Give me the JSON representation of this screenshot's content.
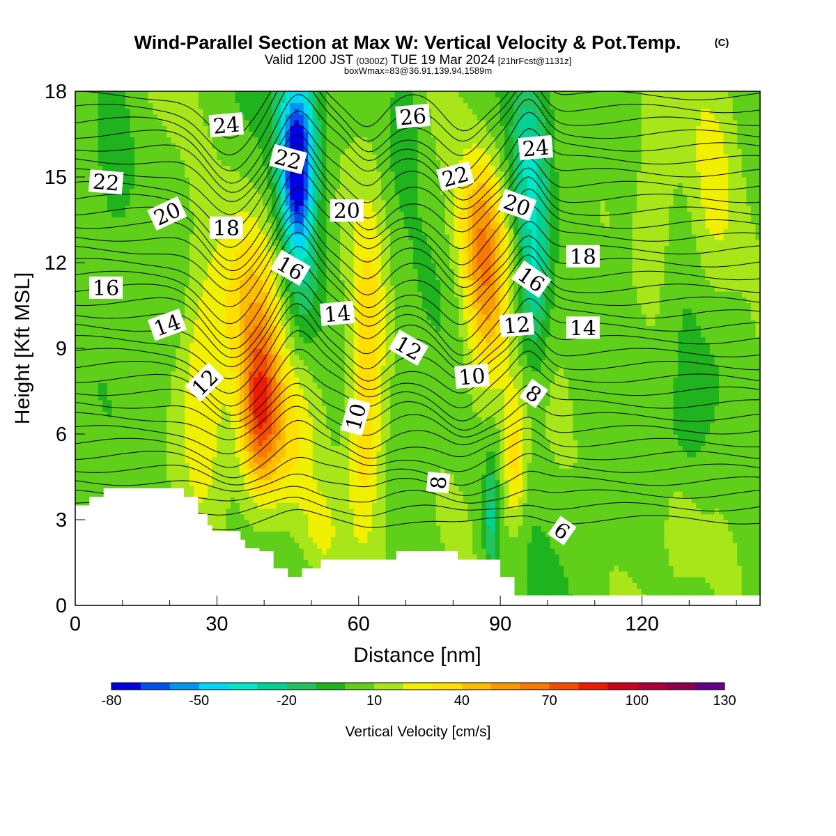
{
  "title": {
    "main": "Wind-Parallel Section at Max W: Vertical Velocity & Pot.Temp.",
    "copyright": "(C)",
    "valid_prefix": "Valid 1200 JST",
    "valid_utc": "(0300Z)",
    "valid_date": "TUE 19 Mar 2024",
    "forecast": "[21hrFcst@1131z]",
    "box": "boxWmax=83@36.91,139.94,1589m"
  },
  "colors": {
    "terrain": "#ffffff",
    "contour": "#000000",
    "background": "#ffffff"
  },
  "chart_data": {
    "type": "heatmap",
    "xlabel": "Distance [nm]",
    "ylabel": "Height [Kft MSL]",
    "xlim": [
      0,
      145
    ],
    "ylim": [
      0,
      18
    ],
    "xticks": [
      0,
      30,
      60,
      90,
      120
    ],
    "yticks": [
      0,
      3,
      6,
      9,
      12,
      15,
      18
    ],
    "colorbar": {
      "title": "Vertical Velocity [cm/s]",
      "tick_labels": [
        "-80",
        "-50",
        "-20",
        "10",
        "40",
        "70",
        "100",
        "130"
      ],
      "tick_values": [
        -80,
        -50,
        -20,
        10,
        40,
        70,
        100,
        130
      ],
      "levels": [
        -80,
        -70,
        -60,
        -50,
        -40,
        -30,
        -20,
        -10,
        0,
        10,
        20,
        30,
        40,
        50,
        60,
        70,
        80,
        90,
        100,
        110,
        120,
        130
      ],
      "colors": [
        "#0000e6",
        "#0050ef",
        "#0096f0",
        "#00d7f5",
        "#00e6c8",
        "#00d296",
        "#1fc45f",
        "#1fb31e",
        "#5fcf1a",
        "#a8e61a",
        "#f0f000",
        "#ffde00",
        "#fcbf00",
        "#fa9a00",
        "#f87800",
        "#f24c00",
        "#ee1b00",
        "#cd0019",
        "#b00038",
        "#8f004e",
        "#640087"
      ]
    },
    "w_features": [
      {
        "x": 39,
        "z": 6.8,
        "sx": 4.0,
        "sz": 2.8,
        "w": 62
      },
      {
        "x": 37,
        "z": 10.5,
        "sx": 6.0,
        "sz": 3.5,
        "w": 28
      },
      {
        "x": 27,
        "z": 8.0,
        "sx": 5.0,
        "sz": 4.5,
        "w": 25
      },
      {
        "x": 45,
        "z": 5.5,
        "sx": 6.0,
        "sz": 3.0,
        "w": 22
      },
      {
        "x": 62,
        "z": 9.5,
        "sx": 4.0,
        "sz": 5.0,
        "w": 30
      },
      {
        "x": 61,
        "z": 5.0,
        "sx": 3.5,
        "sz": 3.0,
        "w": 18
      },
      {
        "x": 87,
        "z": 11.0,
        "sx": 4.5,
        "sz": 3.5,
        "w": 42
      },
      {
        "x": 85,
        "z": 13.5,
        "sx": 5.0,
        "sz": 2.5,
        "w": 25
      },
      {
        "x": 93,
        "z": 5.0,
        "sx": 2.5,
        "sz": 2.5,
        "w": 30
      },
      {
        "x": 47,
        "z": 15.0,
        "sx": 3.5,
        "sz": 2.5,
        "w": -72
      },
      {
        "x": 47,
        "z": 17.0,
        "sx": 4.5,
        "sz": 2.2,
        "w": -35
      },
      {
        "x": 48,
        "z": 11.5,
        "sx": 4.0,
        "sz": 3.0,
        "w": -22
      },
      {
        "x": 97,
        "z": 11.5,
        "sx": 3.5,
        "sz": 3.5,
        "w": -38
      },
      {
        "x": 96,
        "z": 16.0,
        "sx": 4.0,
        "sz": 2.5,
        "w": -25
      },
      {
        "x": 88,
        "z": 3.0,
        "sx": 1.5,
        "sz": 2.0,
        "w": -30
      },
      {
        "x": 70,
        "z": 17.0,
        "sx": 4.0,
        "sz": 2.5,
        "w": -15
      },
      {
        "x": 8,
        "z": 16.0,
        "sx": 4.0,
        "sz": 3.0,
        "w": -15
      },
      {
        "x": 130,
        "z": 6.0,
        "sx": 5.0,
        "sz": 3.0,
        "w": -12
      },
      {
        "x": 135,
        "z": 14.0,
        "sx": 5.0,
        "sz": 4.0,
        "w": 16
      },
      {
        "x": 123,
        "z": 14.0,
        "sx": 4.0,
        "sz": 4.0,
        "w": 14
      },
      {
        "x": 128,
        "z": 3.0,
        "sx": 4.0,
        "sz": 2.0,
        "w": 10
      },
      {
        "x": 52,
        "z": 2.5,
        "sx": 4.0,
        "sz": 1.5,
        "w": 15
      }
    ],
    "terrain_height_kft": [
      [
        0,
        3.5
      ],
      [
        3,
        3.5
      ],
      [
        3,
        3.8
      ],
      [
        6,
        3.8
      ],
      [
        6,
        4.1
      ],
      [
        23,
        4.1
      ],
      [
        23,
        3.8
      ],
      [
        26,
        3.8
      ],
      [
        26,
        3.2
      ],
      [
        28,
        3.2
      ],
      [
        28,
        2.8
      ],
      [
        29,
        2.8
      ],
      [
        29,
        2.6
      ],
      [
        35,
        2.6
      ],
      [
        35,
        2.3
      ],
      [
        36,
        2.3
      ],
      [
        36,
        2.0
      ],
      [
        39,
        2.0
      ],
      [
        39,
        1.9
      ],
      [
        42,
        1.9
      ],
      [
        42,
        1.3
      ],
      [
        45,
        1.3
      ],
      [
        45,
        1.0
      ],
      [
        48,
        1.0
      ],
      [
        48,
        1.3
      ],
      [
        52,
        1.3
      ],
      [
        52,
        1.6
      ],
      [
        68,
        1.6
      ],
      [
        68,
        1.9
      ],
      [
        81,
        1.9
      ],
      [
        81,
        1.6
      ],
      [
        90,
        1.6
      ],
      [
        90,
        1.0
      ],
      [
        93,
        1.0
      ],
      [
        93,
        0.35
      ],
      [
        145,
        0.35
      ]
    ],
    "theta_contour_labels": [
      {
        "text": "24",
        "x": 32.0,
        "y": 16.8,
        "rot": -5
      },
      {
        "text": "26",
        "x": 71.5,
        "y": 17.1,
        "rot": -5
      },
      {
        "text": "24",
        "x": 97.5,
        "y": 16.0,
        "rot": -5
      },
      {
        "text": "22",
        "x": 6.5,
        "y": 14.8,
        "rot": 5
      },
      {
        "text": "22",
        "x": 45.0,
        "y": 15.6,
        "rot": 15
      },
      {
        "text": "22",
        "x": 80.5,
        "y": 15.0,
        "rot": -15
      },
      {
        "text": "20",
        "x": 19.5,
        "y": 13.7,
        "rot": -25
      },
      {
        "text": "20",
        "x": 57.5,
        "y": 13.8,
        "rot": 0
      },
      {
        "text": "20",
        "x": 93.5,
        "y": 14.0,
        "rot": 20
      },
      {
        "text": "18",
        "x": 32.0,
        "y": 13.2,
        "rot": 0
      },
      {
        "text": "18",
        "x": 107.5,
        "y": 12.2,
        "rot": 0
      },
      {
        "text": "16",
        "x": 6.5,
        "y": 11.1,
        "rot": 0
      },
      {
        "text": "16",
        "x": 45.5,
        "y": 11.8,
        "rot": 30
      },
      {
        "text": "16",
        "x": 96.5,
        "y": 11.4,
        "rot": 35
      },
      {
        "text": "14",
        "x": 19.5,
        "y": 9.8,
        "rot": -20
      },
      {
        "text": "14",
        "x": 55.5,
        "y": 10.2,
        "rot": -5
      },
      {
        "text": "14",
        "x": 107.5,
        "y": 9.7,
        "rot": 0
      },
      {
        "text": "12",
        "x": 27.5,
        "y": 7.8,
        "rot": -45
      },
      {
        "text": "12",
        "x": 70.5,
        "y": 9.0,
        "rot": 30
      },
      {
        "text": "12",
        "x": 93.5,
        "y": 9.8,
        "rot": -5
      },
      {
        "text": "10",
        "x": 59.5,
        "y": 6.6,
        "rot": -75
      },
      {
        "text": "10",
        "x": 84.0,
        "y": 8.0,
        "rot": -5
      },
      {
        "text": "8",
        "x": 97.0,
        "y": 7.4,
        "rot": 35
      },
      {
        "text": "8",
        "x": 77.0,
        "y": 4.3,
        "rot": -85
      },
      {
        "text": "6",
        "x": 103.0,
        "y": 2.6,
        "rot": 35
      }
    ]
  }
}
